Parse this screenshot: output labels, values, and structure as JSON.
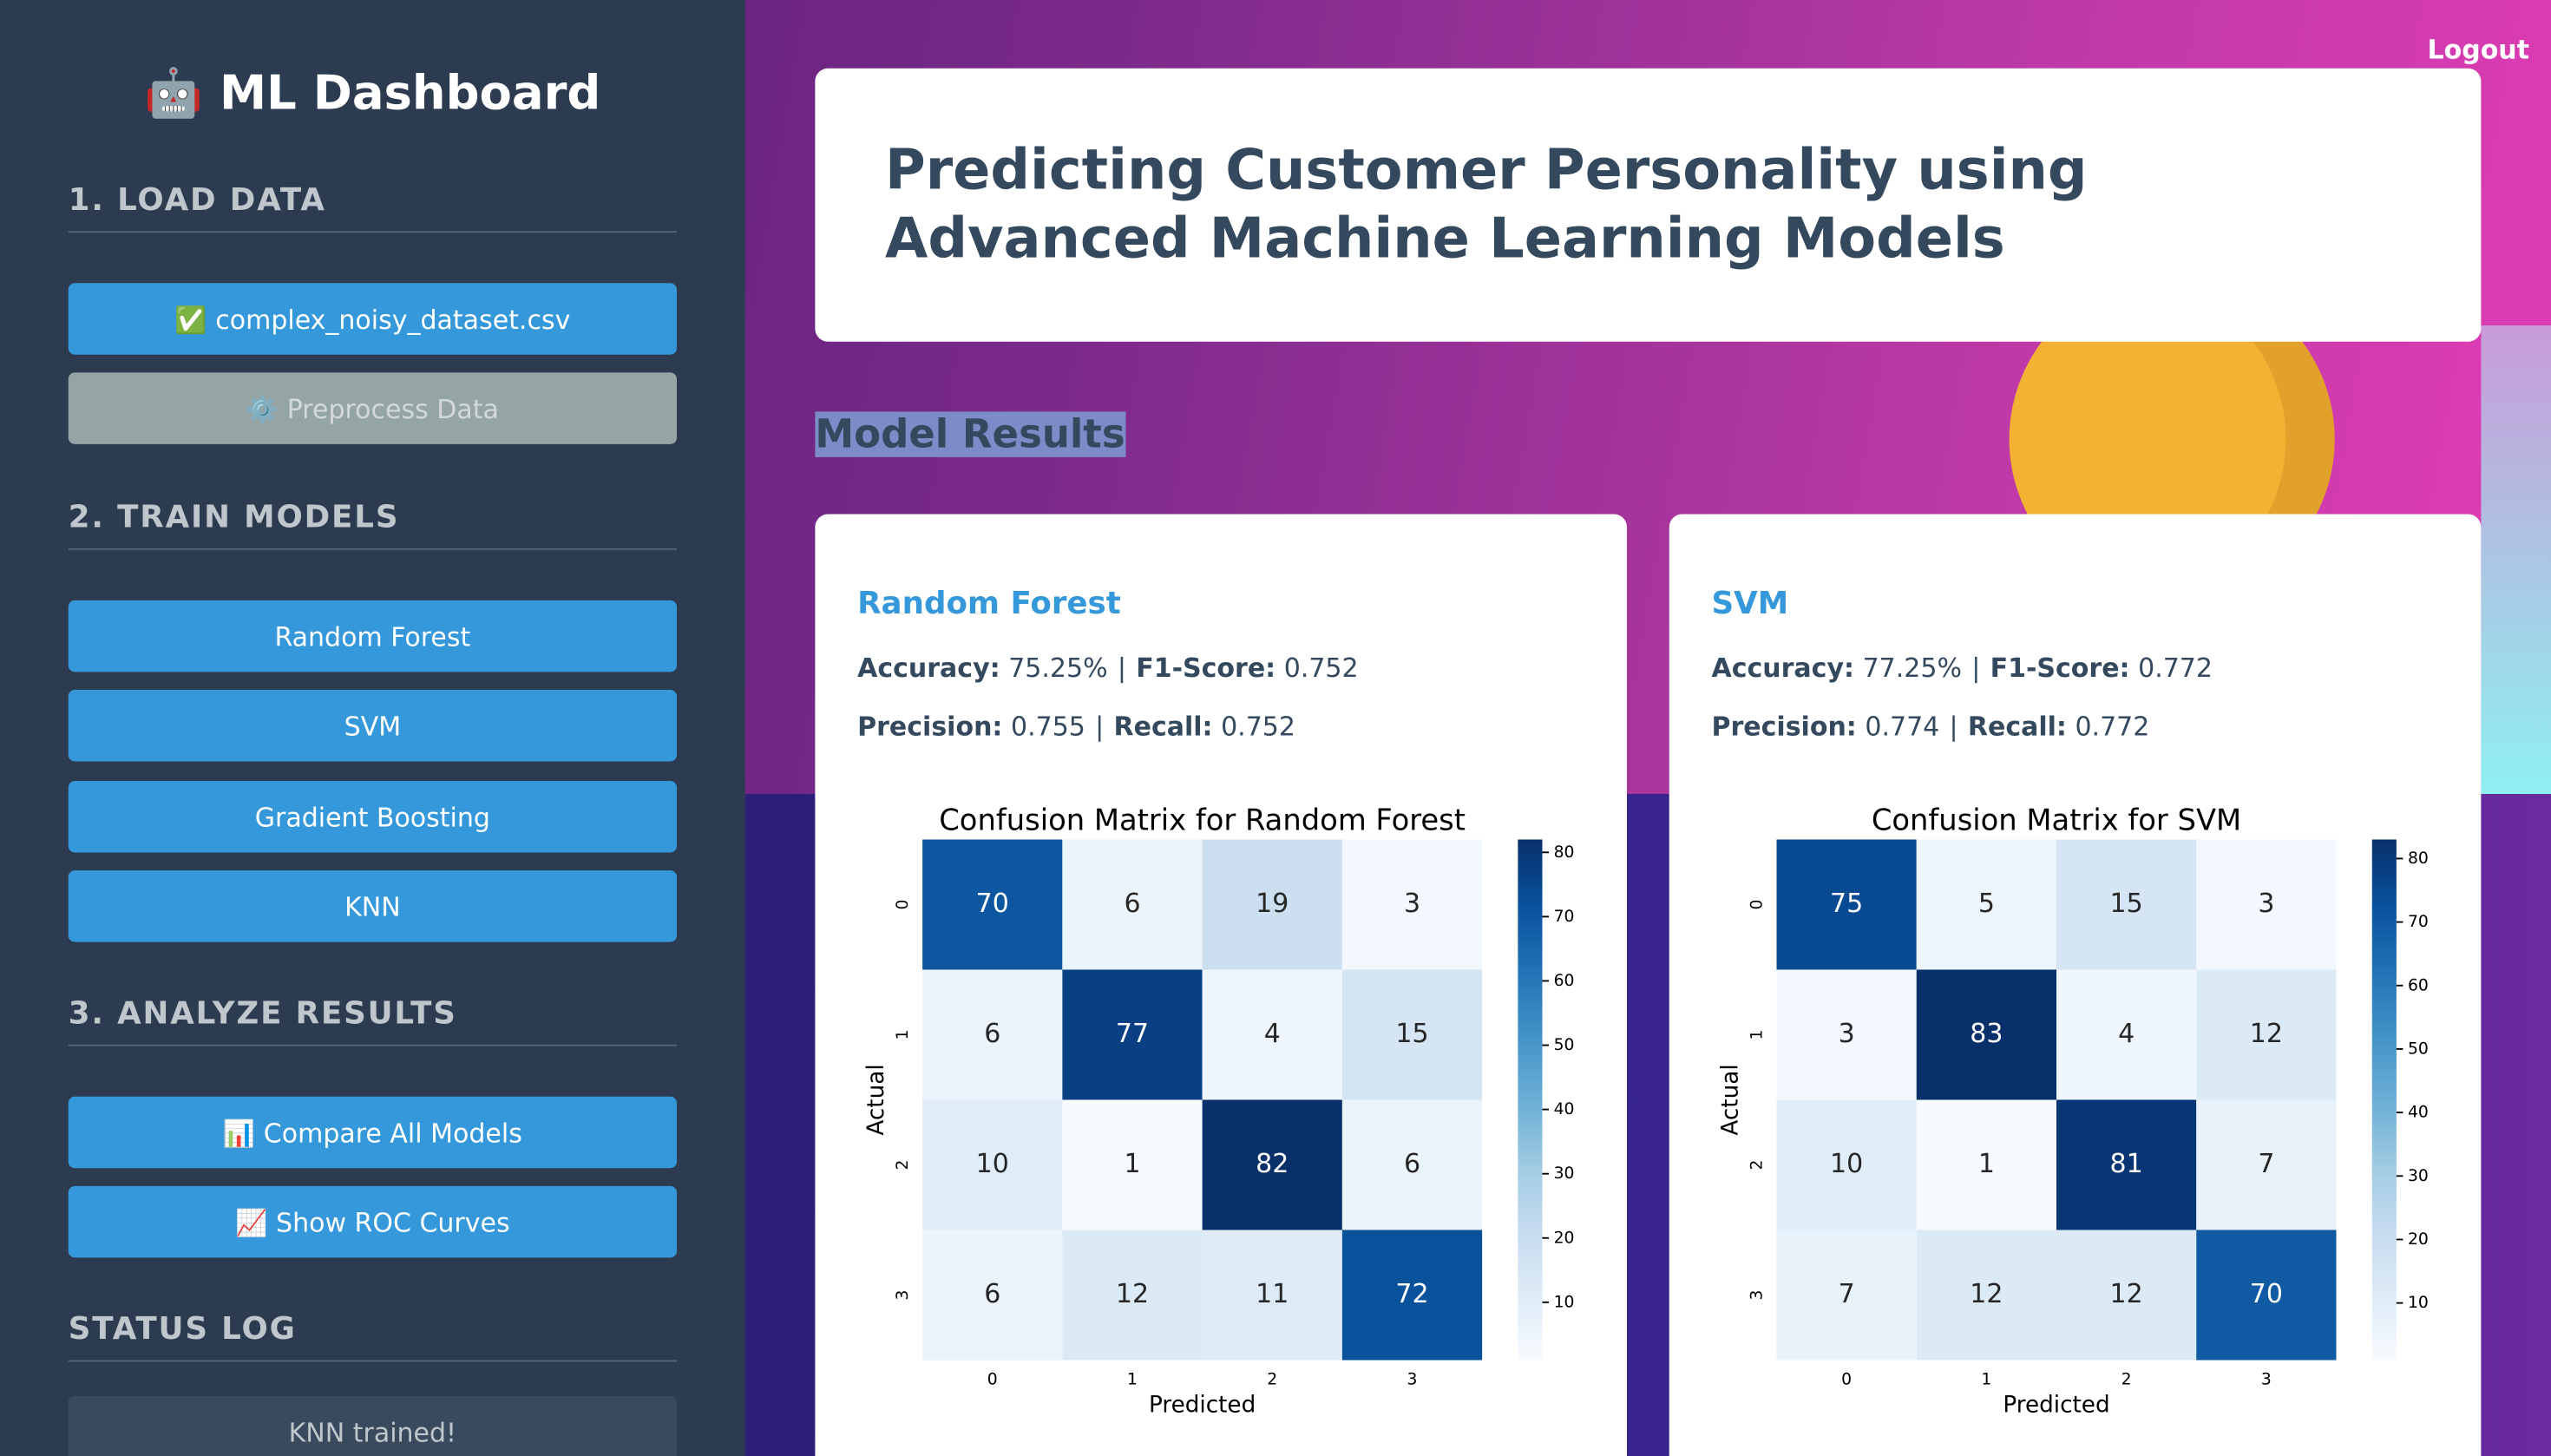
{
  "logout": "Logout",
  "sidebar": {
    "title": "🤖 ML Dashboard",
    "sections": [
      {
        "heading": "1. LOAD DATA",
        "buttons": [
          "✅ complex_noisy_dataset.csv",
          "⚙️ Preprocess Data"
        ]
      },
      {
        "heading": "2. TRAIN MODELS",
        "buttons": [
          "Random Forest",
          "SVM",
          "Gradient Boosting",
          "KNN"
        ]
      },
      {
        "heading": "3. ANALYZE RESULTS",
        "buttons": [
          "📊 Compare All Models",
          "📈 Show ROC Curves"
        ]
      }
    ],
    "status_heading": "STATUS LOG",
    "status": "KNN trained!"
  },
  "header": {
    "title": "Predicting Customer Personality using Advanced Machine Learning Models"
  },
  "results_heading": "Model Results",
  "cards": [
    {
      "name": "Random Forest",
      "metrics": [
        [
          {
            "label": "Accuracy:",
            "value": "75.25%"
          },
          {
            "label": "F1-Score:",
            "value": "0.752"
          }
        ],
        [
          {
            "label": "Precision:",
            "value": "0.755"
          },
          {
            "label": "Recall:",
            "value": "0.752"
          }
        ]
      ],
      "chart": {
        "type": "heatmap",
        "title": "Confusion Matrix for Random Forest",
        "xlabel": "Predicted",
        "ylabel": "Actual",
        "labels": [
          "0",
          "1",
          "2",
          "3"
        ],
        "matrix": [
          [
            70,
            6,
            19,
            3
          ],
          [
            6,
            77,
            4,
            15
          ],
          [
            10,
            1,
            82,
            6
          ],
          [
            6,
            12,
            11,
            72
          ]
        ],
        "clim": [
          1,
          82
        ],
        "cticks": [
          10,
          20,
          30,
          40,
          50,
          60,
          70,
          80
        ]
      }
    },
    {
      "name": "SVM",
      "metrics": [
        [
          {
            "label": "Accuracy:",
            "value": "77.25%"
          },
          {
            "label": "F1-Score:",
            "value": "0.772"
          }
        ],
        [
          {
            "label": "Precision:",
            "value": "0.774"
          },
          {
            "label": "Recall:",
            "value": "0.772"
          }
        ]
      ],
      "chart": {
        "type": "heatmap",
        "title": "Confusion Matrix for SVM",
        "xlabel": "Predicted",
        "ylabel": "Actual",
        "labels": [
          "0",
          "1",
          "2",
          "3"
        ],
        "matrix": [
          [
            75,
            5,
            15,
            3
          ],
          [
            3,
            83,
            4,
            12
          ],
          [
            10,
            1,
            81,
            7
          ],
          [
            7,
            12,
            12,
            70
          ]
        ],
        "clim": [
          1,
          83
        ],
        "cticks": [
          10,
          20,
          30,
          40,
          50,
          60,
          70,
          80
        ]
      }
    }
  ]
}
